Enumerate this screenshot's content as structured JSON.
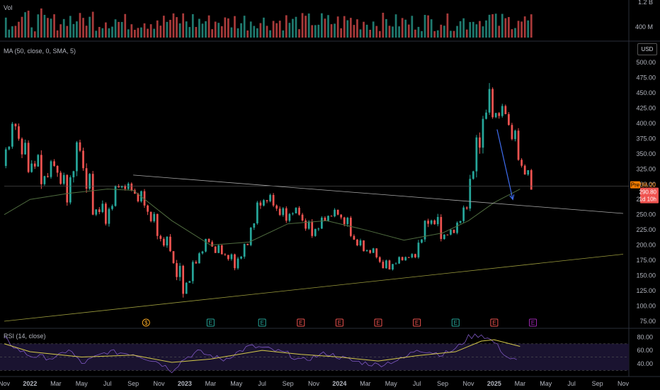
{
  "panes": {
    "volume_title": "Vol",
    "volume_axis": [
      "1.2 B",
      "400 M"
    ],
    "ma_title": "MA (50, close, 0, SMA, 5)",
    "rsi_title": "RSI (14, close)",
    "currency": "USD"
  },
  "price_tags": {
    "pre_label": "Pre",
    "pre_value": "296.20",
    "last_value": "290.80",
    "countdown": "1d 10h"
  },
  "colors": {
    "up": "#26a69a",
    "down": "#ef5350",
    "volume_up": "#1f7a6f",
    "volume_down": "#a83a3a",
    "ma": "#4f6b3f",
    "trendline_upper": "#a8a8a8",
    "trendline_lower": "#9a9a3c",
    "arrow": "#3f6df0",
    "rsi_line": "#7e57c2",
    "rsi_ma": "#d4c84a",
    "pre_tag": "#f57c00",
    "last_tag": "#ef5350"
  },
  "event_markers": [
    {
      "letter": "$",
      "date": "2022-10",
      "color": "#f5a623",
      "shape": "circle"
    },
    {
      "letter": "E",
      "date": "2023-03",
      "color": "#26a69a",
      "shape": "square"
    },
    {
      "letter": "E",
      "date": "2023-07",
      "color": "#26a69a",
      "shape": "square"
    },
    {
      "letter": "E",
      "date": "2023-10",
      "color": "#ef5350",
      "shape": "square"
    },
    {
      "letter": "E",
      "date": "2024-01",
      "color": "#ef5350",
      "shape": "square"
    },
    {
      "letter": "E",
      "date": "2024-04",
      "color": "#ef5350",
      "shape": "square"
    },
    {
      "letter": "E",
      "date": "2024-07",
      "color": "#ef5350",
      "shape": "square"
    },
    {
      "letter": "E",
      "date": "2024-10",
      "color": "#26a69a",
      "shape": "square"
    },
    {
      "letter": "E",
      "date": "2025-01",
      "color": "#ef5350",
      "shape": "square"
    },
    {
      "letter": "E",
      "date": "2025-04",
      "color": "#9c27b0",
      "shape": "square"
    }
  ],
  "chart_data": {
    "type": "candlestick",
    "interval": "weekly",
    "x_axis_ticks": [
      "Nov",
      "2022",
      "Mar",
      "May",
      "Jul",
      "Sep",
      "Nov",
      "2023",
      "Mar",
      "May",
      "Jul",
      "Sep",
      "Nov",
      "2024",
      "Mar",
      "May",
      "Jul",
      "Sep",
      "Nov",
      "2025",
      "Mar",
      "May",
      "Jul",
      "Sep",
      "Nov"
    ],
    "x_range": [
      "2021-11",
      "2025-11"
    ],
    "price_axis_ticks": [
      75,
      100,
      125,
      150,
      175,
      200,
      225,
      250,
      275,
      300,
      325,
      350,
      375,
      400,
      425,
      450,
      475,
      500
    ],
    "ylim": [
      75,
      500
    ],
    "rsi_axis_ticks": [
      40.0,
      60.0,
      80.0
    ],
    "rsi_bands": [
      30,
      50,
      70
    ],
    "price_series_monthly": [
      {
        "date": "2021-11",
        "o": 330,
        "h": 405,
        "c": 395,
        "l": 320
      },
      {
        "date": "2021-12",
        "o": 395,
        "h": 400,
        "c": 320,
        "l": 300
      },
      {
        "date": "2022-01",
        "o": 320,
        "h": 380,
        "c": 300,
        "l": 280
      },
      {
        "date": "2022-02",
        "o": 300,
        "h": 345,
        "c": 330,
        "l": 280
      },
      {
        "date": "2022-03",
        "o": 330,
        "h": 345,
        "c": 270,
        "l": 258
      },
      {
        "date": "2022-04",
        "o": 270,
        "h": 380,
        "c": 355,
        "l": 265
      },
      {
        "date": "2022-05",
        "o": 355,
        "h": 360,
        "c": 250,
        "l": 228
      },
      {
        "date": "2022-06",
        "o": 250,
        "h": 290,
        "c": 235,
        "l": 220
      },
      {
        "date": "2022-07",
        "o": 235,
        "h": 300,
        "c": 295,
        "l": 230
      },
      {
        "date": "2022-08",
        "o": 295,
        "h": 310,
        "c": 290,
        "l": 275
      },
      {
        "date": "2022-09",
        "o": 290,
        "h": 305,
        "c": 265,
        "l": 240
      },
      {
        "date": "2022-10",
        "o": 265,
        "h": 275,
        "c": 215,
        "l": 205
      },
      {
        "date": "2022-11",
        "o": 215,
        "h": 230,
        "c": 190,
        "l": 170
      },
      {
        "date": "2022-12",
        "o": 190,
        "h": 195,
        "c": 120,
        "l": 102
      },
      {
        "date": "2023-01",
        "o": 120,
        "h": 175,
        "c": 170,
        "l": 108
      },
      {
        "date": "2023-02",
        "o": 170,
        "h": 215,
        "c": 205,
        "l": 165
      },
      {
        "date": "2023-03",
        "o": 205,
        "h": 210,
        "c": 185,
        "l": 165
      },
      {
        "date": "2023-04",
        "o": 185,
        "h": 200,
        "c": 162,
        "l": 155
      },
      {
        "date": "2023-05",
        "o": 162,
        "h": 205,
        "c": 200,
        "l": 158
      },
      {
        "date": "2023-06",
        "o": 200,
        "h": 275,
        "c": 265,
        "l": 198
      },
      {
        "date": "2023-07",
        "o": 265,
        "h": 295,
        "c": 265,
        "l": 250
      },
      {
        "date": "2023-08",
        "o": 265,
        "h": 275,
        "c": 240,
        "l": 225
      },
      {
        "date": "2023-09",
        "o": 240,
        "h": 270,
        "c": 250,
        "l": 235
      },
      {
        "date": "2023-10",
        "o": 250,
        "h": 255,
        "c": 215,
        "l": 200
      },
      {
        "date": "2023-11",
        "o": 215,
        "h": 250,
        "c": 240,
        "l": 205
      },
      {
        "date": "2023-12",
        "o": 240,
        "h": 265,
        "c": 250,
        "l": 230
      },
      {
        "date": "2024-01",
        "o": 250,
        "h": 265,
        "c": 215,
        "l": 205
      },
      {
        "date": "2024-02",
        "o": 215,
        "h": 220,
        "c": 190,
        "l": 180
      },
      {
        "date": "2024-03",
        "o": 190,
        "h": 205,
        "c": 180,
        "l": 170
      },
      {
        "date": "2024-04",
        "o": 180,
        "h": 185,
        "c": 160,
        "l": 140
      },
      {
        "date": "2024-05",
        "o": 160,
        "h": 185,
        "c": 175,
        "l": 155
      },
      {
        "date": "2024-06",
        "o": 175,
        "h": 190,
        "c": 180,
        "l": 170
      },
      {
        "date": "2024-07",
        "o": 180,
        "h": 245,
        "c": 235,
        "l": 175
      },
      {
        "date": "2024-08",
        "o": 235,
        "h": 270,
        "c": 210,
        "l": 200
      },
      {
        "date": "2024-09",
        "o": 210,
        "h": 230,
        "c": 220,
        "l": 205
      },
      {
        "date": "2024-10",
        "o": 220,
        "h": 265,
        "c": 260,
        "l": 215
      },
      {
        "date": "2024-11",
        "o": 260,
        "h": 390,
        "c": 360,
        "l": 255
      },
      {
        "date": "2024-12",
        "o": 360,
        "h": 488,
        "c": 410,
        "l": 350
      },
      {
        "date": "2025-01",
        "o": 410,
        "h": 440,
        "c": 415,
        "l": 385
      },
      {
        "date": "2025-02",
        "o": 415,
        "h": 420,
        "c": 340,
        "l": 330
      },
      {
        "date": "2025-03",
        "o": 340,
        "h": 345,
        "c": 291,
        "l": 288
      }
    ],
    "ma50_monthly": [
      {
        "date": "2021-11",
        "v": 250
      },
      {
        "date": "2022-01",
        "v": 275
      },
      {
        "date": "2022-04",
        "v": 285
      },
      {
        "date": "2022-07",
        "v": 292
      },
      {
        "date": "2022-09",
        "v": 290
      },
      {
        "date": "2022-12",
        "v": 240
      },
      {
        "date": "2023-03",
        "v": 200
      },
      {
        "date": "2023-06",
        "v": 205
      },
      {
        "date": "2023-09",
        "v": 235
      },
      {
        "date": "2023-12",
        "v": 240
      },
      {
        "date": "2024-03",
        "v": 225
      },
      {
        "date": "2024-06",
        "v": 208
      },
      {
        "date": "2024-09",
        "v": 220
      },
      {
        "date": "2024-11",
        "v": 240
      },
      {
        "date": "2025-01",
        "v": 270
      },
      {
        "date": "2025-03",
        "v": 292
      }
    ],
    "trendline_upper": [
      {
        "date": "2022-09",
        "v": 315
      },
      {
        "date": "2025-11",
        "v": 252
      }
    ],
    "trendline_lower": [
      {
        "date": "2021-11",
        "v": 75
      },
      {
        "date": "2025-11",
        "v": 185
      }
    ],
    "arrow": [
      {
        "date": "2025-01",
        "v": 390
      },
      {
        "date": "2025-02",
        "v": 275
      }
    ],
    "horizontal_line": 297,
    "rsi_monthly": [
      {
        "date": "2021-11",
        "v": 78
      },
      {
        "date": "2021-12",
        "v": 62
      },
      {
        "date": "2022-01",
        "v": 52
      },
      {
        "date": "2022-03",
        "v": 48
      },
      {
        "date": "2022-04",
        "v": 62
      },
      {
        "date": "2022-05",
        "v": 40
      },
      {
        "date": "2022-07",
        "v": 58
      },
      {
        "date": "2022-09",
        "v": 55
      },
      {
        "date": "2022-11",
        "v": 42
      },
      {
        "date": "2022-12",
        "v": 30
      },
      {
        "date": "2023-01",
        "v": 48
      },
      {
        "date": "2023-02",
        "v": 58
      },
      {
        "date": "2023-04",
        "v": 46
      },
      {
        "date": "2023-06",
        "v": 66
      },
      {
        "date": "2023-07",
        "v": 64
      },
      {
        "date": "2023-09",
        "v": 55
      },
      {
        "date": "2023-10",
        "v": 44
      },
      {
        "date": "2023-12",
        "v": 56
      },
      {
        "date": "2024-02",
        "v": 44
      },
      {
        "date": "2024-04",
        "v": 38
      },
      {
        "date": "2024-06",
        "v": 48
      },
      {
        "date": "2024-07",
        "v": 62
      },
      {
        "date": "2024-09",
        "v": 54
      },
      {
        "date": "2024-10",
        "v": 62
      },
      {
        "date": "2024-11",
        "v": 80
      },
      {
        "date": "2024-12",
        "v": 84
      },
      {
        "date": "2025-01",
        "v": 72
      },
      {
        "date": "2025-02",
        "v": 50
      },
      {
        "date": "2025-03",
        "v": 42
      }
    ],
    "rsi_ma_monthly": [
      {
        "date": "2021-11",
        "v": 70
      },
      {
        "date": "2022-01",
        "v": 58
      },
      {
        "date": "2022-05",
        "v": 50
      },
      {
        "date": "2022-09",
        "v": 53
      },
      {
        "date": "2022-12",
        "v": 42
      },
      {
        "date": "2023-03",
        "v": 47
      },
      {
        "date": "2023-07",
        "v": 60
      },
      {
        "date": "2023-10",
        "v": 54
      },
      {
        "date": "2024-01",
        "v": 50
      },
      {
        "date": "2024-04",
        "v": 44
      },
      {
        "date": "2024-07",
        "v": 52
      },
      {
        "date": "2024-10",
        "v": 58
      },
      {
        "date": "2024-12",
        "v": 74
      },
      {
        "date": "2025-01",
        "v": 76
      },
      {
        "date": "2025-03",
        "v": 66
      }
    ]
  }
}
